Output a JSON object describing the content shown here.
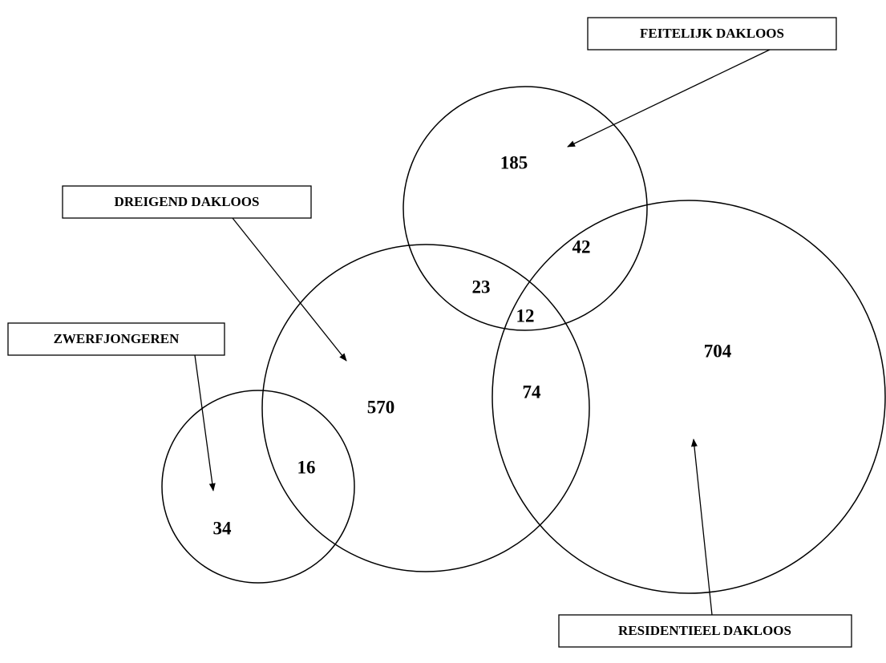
{
  "sets": [
    {
      "label": "FEITELIJK DAKLOOS"
    },
    {
      "label": "DREIGEND DAKLOOS"
    },
    {
      "label": "ZWERFJONGEREN"
    },
    {
      "label": "RESIDENTIEEL DAKLOOS"
    }
  ],
  "regions": [
    {
      "value": 185
    },
    {
      "value": 42
    },
    {
      "value": 23
    },
    {
      "value": 12
    },
    {
      "value": 704
    },
    {
      "value": 74
    },
    {
      "value": 570
    },
    {
      "value": 16
    },
    {
      "value": 34
    }
  ]
}
